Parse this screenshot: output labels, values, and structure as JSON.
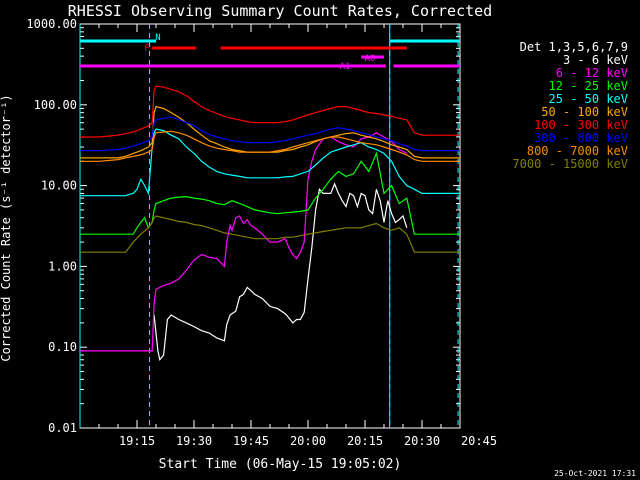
{
  "chart_data": {
    "type": "line",
    "title": "RHESSI Observing Summary Count Rates, Corrected",
    "xlabel": "Start Time (06-May-15 19:05:02)",
    "ylabel": "Corrected Count Rate (s⁻¹ detector⁻¹)",
    "y_scale": "log",
    "ylim": [
      0.01,
      1000
    ],
    "y_ticks": [
      "1000.00",
      "100.00",
      "10.00",
      "1.00",
      "0.10",
      "0.01"
    ],
    "x_ticks": [
      "19:15",
      "19:30",
      "19:45",
      "20:00",
      "20:15",
      "20:30",
      "20:45"
    ],
    "xlim_minutes": [
      0,
      100
    ],
    "x_tick_minutes": [
      15,
      30,
      45,
      60,
      75,
      90,
      105
    ],
    "timestamp": "25-Oct-2021 17:31",
    "legend_title": "Det 1,3,5,6,7,9",
    "legend_position": "right",
    "series": [
      {
        "name": "3 - 6 keV",
        "color": "#ffffff",
        "x": [
          19.5,
          20.5,
          21,
          22,
          23,
          24,
          26,
          28,
          30,
          32,
          34,
          36,
          38,
          38.6,
          39.5,
          41,
          42,
          43,
          44,
          45,
          46,
          48,
          50,
          52,
          54,
          55,
          56,
          57,
          58,
          59,
          60,
          61,
          62,
          63,
          64,
          66,
          67,
          68,
          69,
          70,
          71,
          72,
          73,
          74,
          75,
          76,
          77,
          78,
          79,
          80,
          81,
          82,
          83,
          84,
          85,
          86
        ],
        "y": [
          0.25,
          0.09,
          0.07,
          0.08,
          0.22,
          0.25,
          0.22,
          0.2,
          0.18,
          0.16,
          0.15,
          0.13,
          0.12,
          0.19,
          0.25,
          0.28,
          0.42,
          0.45,
          0.55,
          0.5,
          0.45,
          0.4,
          0.32,
          0.3,
          0.26,
          0.23,
          0.2,
          0.22,
          0.22,
          0.27,
          0.7,
          1.7,
          5.0,
          9.0,
          8.0,
          8.0,
          10.5,
          8.0,
          6.5,
          5.5,
          8.0,
          7.5,
          5.5,
          8.0,
          7.5,
          5.0,
          4.5,
          9.0,
          6.5,
          3.5,
          6.5,
          4.5,
          3.5,
          3.8,
          4.2,
          3.0
        ]
      },
      {
        "name": "6 - 12 keV",
        "color": "#ff00ff",
        "x": [
          0,
          8,
          9,
          10,
          11,
          13,
          14,
          14.8,
          16,
          17,
          18,
          19,
          19.5,
          20,
          22,
          24,
          26,
          28,
          30,
          32,
          34,
          36,
          38,
          38.6,
          39.5,
          40,
          41,
          42,
          43,
          44,
          45,
          46,
          48,
          50,
          52,
          54,
          55,
          56,
          57,
          58,
          59,
          60,
          61,
          62,
          64,
          66,
          68,
          70,
          72,
          74,
          76,
          78,
          80,
          82,
          84,
          86
        ],
        "y": [
          0.09,
          0.09,
          0.09,
          0.09,
          0.09,
          0.09,
          0.09,
          0.09,
          0.09,
          0.09,
          0.09,
          0.09,
          0.35,
          0.52,
          0.58,
          0.62,
          0.7,
          0.9,
          1.2,
          1.4,
          1.3,
          1.25,
          1.0,
          2.0,
          3.2,
          2.8,
          4.0,
          4.2,
          3.4,
          3.8,
          3.2,
          3.0,
          2.5,
          2.0,
          2.0,
          2.2,
          1.7,
          1.4,
          1.25,
          1.5,
          2.0,
          12.0,
          20.0,
          28.0,
          38.0,
          40.0,
          35.0,
          32.0,
          30.0,
          38.0,
          40.0,
          45.0,
          40.0,
          35.0,
          28.0,
          25.0
        ]
      },
      {
        "name": "12 - 25 keV",
        "color": "#00ff00",
        "x": [
          0,
          5,
          10,
          12,
          14,
          15,
          16,
          17,
          18,
          19,
          19.5,
          20,
          22,
          24,
          26,
          28,
          30,
          32,
          34,
          36,
          38,
          38.6,
          40,
          42,
          44,
          46,
          48,
          50,
          52,
          54,
          56,
          58,
          60,
          62,
          64,
          66,
          68,
          70,
          72,
          74,
          76,
          78,
          80,
          82,
          84,
          86,
          88,
          90,
          92,
          95,
          100
        ],
        "y": [
          2.5,
          2.5,
          2.5,
          2.5,
          2.5,
          3.0,
          3.5,
          4.0,
          3.0,
          3.5,
          5.0,
          6.0,
          6.5,
          7.0,
          7.2,
          7.3,
          7.0,
          6.8,
          6.5,
          6.0,
          5.8,
          6.0,
          6.5,
          6.0,
          5.5,
          5.0,
          4.8,
          4.6,
          4.5,
          4.6,
          4.7,
          4.8,
          5.0,
          7.0,
          9.0,
          12.0,
          15.0,
          13.0,
          14.0,
          20.0,
          15.0,
          25.0,
          8.0,
          10.0,
          6.0,
          7.0,
          2.5,
          2.5,
          2.5,
          2.5,
          2.5
        ]
      },
      {
        "name": "25 - 50 keV",
        "color": "#00ffff",
        "x": [
          0,
          5,
          10,
          12,
          13,
          14,
          15,
          16,
          17,
          18,
          19,
          19.5,
          20,
          22,
          24,
          26,
          28,
          30,
          32,
          34,
          36,
          38,
          40,
          42,
          44,
          46,
          48,
          50,
          52,
          54,
          56,
          58,
          60,
          62,
          64,
          66,
          68,
          70,
          72,
          74,
          76,
          78,
          80,
          82,
          84,
          86,
          88,
          90,
          92,
          95,
          100
        ],
        "y": [
          7.5,
          7.5,
          7.5,
          7.5,
          7.8,
          8.0,
          9.0,
          12.0,
          10.0,
          8.0,
          30.0,
          45.0,
          50.0,
          48.0,
          42.0,
          38.0,
          30.0,
          25.0,
          20.0,
          17.0,
          15.0,
          14.0,
          13.5,
          13.0,
          12.5,
          12.5,
          12.5,
          12.5,
          12.5,
          12.8,
          13.0,
          14.0,
          15.0,
          18.0,
          22.0,
          26.0,
          28.0,
          30.0,
          32.0,
          34.0,
          30.0,
          28.0,
          25.0,
          20.0,
          13.0,
          10.0,
          9.0,
          8.0,
          8.0,
          8.0,
          8.0
        ]
      },
      {
        "name": "50 - 100 keV",
        "color": "#ffa500",
        "x": [
          0,
          5,
          10,
          12,
          14,
          16,
          18,
          19,
          19.5,
          20,
          22,
          24,
          26,
          28,
          30,
          32,
          34,
          36,
          38,
          40,
          42,
          44,
          46,
          48,
          50,
          52,
          54,
          56,
          58,
          60,
          62,
          64,
          66,
          68,
          70,
          72,
          74,
          76,
          78,
          80,
          82,
          84,
          86,
          88,
          90,
          92,
          95,
          100
        ],
        "y": [
          22,
          22,
          22,
          23,
          25,
          27,
          30,
          34,
          80,
          95,
          90,
          80,
          70,
          60,
          50,
          42,
          36,
          33,
          30,
          28,
          27,
          26,
          26,
          26,
          26,
          26,
          27,
          28,
          30,
          32,
          35,
          38,
          40,
          42,
          44,
          45,
          42,
          40,
          38,
          35,
          32,
          30,
          28,
          23,
          22,
          22,
          22,
          22
        ]
      },
      {
        "name": "100 - 300 keV",
        "color": "#ff0000",
        "x": [
          0,
          5,
          10,
          12,
          14,
          16,
          18,
          19,
          19.5,
          20,
          22,
          24,
          26,
          28,
          30,
          32,
          34,
          36,
          38,
          40,
          42,
          44,
          46,
          48,
          50,
          52,
          54,
          56,
          58,
          60,
          62,
          64,
          66,
          68,
          70,
          72,
          74,
          76,
          78,
          80,
          82,
          84,
          86,
          88,
          90,
          92,
          95,
          100
        ],
        "y": [
          40,
          40,
          42,
          44,
          46,
          50,
          55,
          60,
          150,
          170,
          165,
          155,
          145,
          130,
          110,
          95,
          85,
          78,
          72,
          68,
          65,
          62,
          60,
          60,
          60,
          60,
          62,
          65,
          70,
          75,
          80,
          85,
          90,
          95,
          95,
          90,
          85,
          80,
          78,
          75,
          72,
          68,
          65,
          45,
          42,
          42,
          42,
          42
        ]
      },
      {
        "name": "300 - 800 keV",
        "color": "#0000ff",
        "x": [
          0,
          5,
          10,
          12,
          14,
          16,
          18,
          19,
          19.5,
          20,
          22,
          24,
          26,
          28,
          30,
          32,
          34,
          36,
          38,
          40,
          42,
          44,
          46,
          48,
          50,
          52,
          54,
          56,
          58,
          60,
          62,
          64,
          66,
          68,
          70,
          72,
          74,
          76,
          78,
          80,
          82,
          84,
          86,
          88,
          90,
          92,
          95,
          100
        ],
        "y": [
          27,
          27,
          28,
          29,
          31,
          33,
          36,
          40,
          60,
          65,
          68,
          70,
          66,
          60,
          55,
          48,
          43,
          40,
          38,
          36,
          35,
          34,
          34,
          34,
          34,
          35,
          36,
          38,
          40,
          42,
          44,
          47,
          50,
          52,
          50,
          48,
          45,
          43,
          40,
          38,
          36,
          33,
          31,
          28,
          27,
          27,
          27,
          27
        ]
      },
      {
        "name": "800 - 7000 keV",
        "color": "#ff8c00",
        "x": [
          0,
          5,
          10,
          12,
          14,
          16,
          18,
          19,
          19.5,
          20,
          22,
          24,
          26,
          28,
          30,
          32,
          34,
          36,
          38,
          40,
          42,
          44,
          46,
          48,
          50,
          52,
          54,
          56,
          58,
          60,
          62,
          64,
          66,
          68,
          70,
          72,
          74,
          76,
          78,
          80,
          82,
          84,
          86,
          88,
          90,
          92,
          95,
          100
        ],
        "y": [
          20,
          20,
          21,
          22,
          23,
          24,
          26,
          28,
          40,
          45,
          46,
          47,
          45,
          42,
          38,
          34,
          31,
          29,
          28,
          27,
          26,
          26,
          26,
          26,
          26,
          27,
          28,
          30,
          32,
          34,
          36,
          38,
          40,
          40,
          38,
          36,
          34,
          33,
          32,
          30,
          28,
          26,
          24,
          21,
          20,
          20,
          20,
          20
        ]
      },
      {
        "name": "7000 - 15000 keV",
        "color": "#808000",
        "x": [
          0,
          5,
          10,
          12,
          14,
          16,
          18,
          19,
          19.5,
          20,
          22,
          24,
          26,
          28,
          30,
          32,
          34,
          36,
          38,
          40,
          42,
          44,
          46,
          48,
          50,
          52,
          54,
          56,
          58,
          60,
          62,
          64,
          66,
          68,
          70,
          72,
          74,
          76,
          78,
          80,
          82,
          84,
          86,
          88,
          90,
          92,
          95,
          100
        ],
        "y": [
          1.5,
          1.5,
          1.5,
          1.5,
          2.0,
          2.5,
          3.0,
          3.5,
          4.0,
          4.2,
          4.0,
          3.8,
          3.6,
          3.5,
          3.3,
          3.2,
          3.0,
          2.8,
          2.6,
          2.5,
          2.4,
          2.3,
          2.2,
          2.2,
          2.2,
          2.2,
          2.3,
          2.3,
          2.4,
          2.5,
          2.6,
          2.7,
          2.8,
          2.9,
          3.0,
          3.0,
          3.0,
          3.2,
          3.4,
          3.0,
          2.8,
          3.0,
          2.5,
          1.5,
          1.5,
          1.5,
          1.5,
          1.5
        ]
      }
    ],
    "markers": {
      "N": {
        "label": "N",
        "color": "#00ffff",
        "segments": [
          [
            0,
            20
          ],
          [
            81.5,
            100
          ]
        ]
      },
      "F": {
        "label": "F",
        "color": "#ff0000",
        "segments": [
          [
            19,
            30.5
          ],
          [
            37,
            86
          ]
        ]
      },
      "A0": {
        "label": "A0",
        "color": "#ff00ff",
        "segments": [
          [
            74,
            80
          ]
        ]
      },
      "A1": {
        "label": "A1",
        "color": "#ff00ff",
        "segments": [
          [
            0,
            80.5
          ],
          [
            82.5,
            100
          ]
        ]
      }
    },
    "vlines_solid_minutes": [
      0,
      81.5
    ],
    "vlines_dashed_minutes": [
      18.3,
      81.5,
      99.5
    ]
  }
}
